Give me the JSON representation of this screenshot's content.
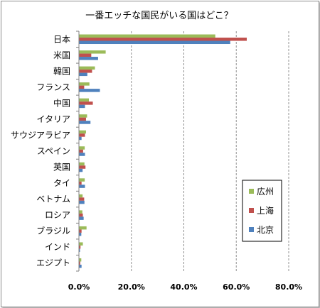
{
  "chart_data": {
    "type": "bar",
    "orientation": "horizontal",
    "title": "一番エッチな国民がいる国はどこ？",
    "categories": [
      "日本",
      "米国",
      "韓国",
      "フランス",
      "中国",
      "イタリア",
      "サウジアラビア",
      "スペイン",
      "英国",
      "タイ",
      "ベトナム",
      "ロシア",
      "ブラジル",
      "インド",
      "エジプト"
    ],
    "series": [
      {
        "name": "広州",
        "color": "#9bbb59",
        "values": [
          52.0,
          10.2,
          6.1,
          4.0,
          3.8,
          3.1,
          2.7,
          2.2,
          2.1,
          2.2,
          1.4,
          1.3,
          2.9,
          1.5,
          0.9
        ]
      },
      {
        "name": "上海",
        "color": "#c0504d",
        "values": [
          64.0,
          4.7,
          5.0,
          2.0,
          5.3,
          2.7,
          2.3,
          1.6,
          2.5,
          1.0,
          2.0,
          1.5,
          1.0,
          0.6,
          0.5
        ]
      },
      {
        "name": "北京",
        "color": "#4f81bd",
        "values": [
          57.7,
          7.3,
          3.2,
          8.0,
          2.3,
          4.4,
          1.0,
          2.3,
          1.4,
          2.3,
          2.1,
          1.8,
          0.9,
          0.4,
          1.0
        ]
      }
    ],
    "xlim": [
      0,
      80
    ],
    "xticks": [
      "0.0%",
      "20.0%",
      "40.0%",
      "60.0%",
      "80.0%"
    ],
    "grid": "vertical dashed",
    "legend_placement": "bottom-right"
  }
}
